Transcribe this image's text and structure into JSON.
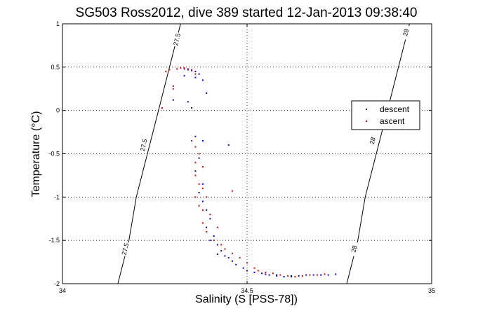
{
  "chart_data": {
    "type": "scatter",
    "title": "SG503 Ross2012, dive 389 started 12-Jan-2013 09:38:40",
    "xlabel": "Salinity (S [PSS-78])",
    "ylabel": "Temperature (°C)",
    "xlim": [
      34,
      35
    ],
    "ylim": [
      -2,
      1
    ],
    "grid": true,
    "legend_position": "right",
    "x_ticks": [
      "34",
      "34.5",
      "35"
    ],
    "y_ticks": [
      "-2",
      "-1.5",
      "-1",
      "-0.5",
      "0",
      "0.5",
      "1"
    ],
    "contours": [
      {
        "label": "27.5",
        "points": [
          [
            34.15,
            -2
          ],
          [
            34.18,
            -1.5
          ],
          [
            34.2,
            -1
          ],
          [
            34.23,
            -0.5
          ],
          [
            34.26,
            0
          ],
          [
            34.29,
            0.5
          ],
          [
            34.32,
            1
          ]
        ],
        "label_positions": [
          [
            34.17,
            -1.6
          ],
          [
            34.22,
            -0.4
          ],
          [
            34.31,
            0.82
          ]
        ]
      },
      {
        "label": "28",
        "points": [
          [
            34.77,
            -2
          ],
          [
            34.8,
            -1.5
          ],
          [
            34.82,
            -1
          ],
          [
            34.85,
            -0.5
          ],
          [
            34.88,
            0
          ],
          [
            34.91,
            0.5
          ],
          [
            34.94,
            1
          ]
        ],
        "label_positions": [
          [
            34.79,
            -1.6
          ],
          [
            34.84,
            -0.35
          ],
          [
            34.93,
            0.9
          ]
        ]
      }
    ],
    "series": [
      {
        "name": "descent",
        "color": "#0000ff",
        "x": [
          34.33,
          34.34,
          34.35,
          34.36,
          34.37,
          34.33,
          34.36,
          34.38,
          34.39,
          34.3,
          34.34,
          34.35,
          34.36,
          34.38,
          34.45,
          34.37,
          34.36,
          34.38,
          34.37,
          34.38,
          34.39,
          34.4,
          34.39,
          34.41,
          34.4,
          34.42,
          34.43,
          34.42,
          34.44,
          34.45,
          34.46,
          34.47,
          34.49,
          34.5,
          34.52,
          34.54,
          34.56,
          34.58,
          34.6,
          34.62,
          34.64,
          34.66,
          34.68,
          34.7,
          34.72,
          34.74,
          34.55,
          34.58,
          34.62
        ],
        "y": [
          0.48,
          0.47,
          0.46,
          0.45,
          0.42,
          0.4,
          0.38,
          0.35,
          0.2,
          0.12,
          0.1,
          0.03,
          -0.3,
          -0.35,
          -0.4,
          -0.55,
          -0.7,
          -0.85,
          -0.95,
          -1.05,
          -1.15,
          -1.25,
          -1.35,
          -1.45,
          -1.5,
          -1.55,
          -1.62,
          -1.66,
          -1.68,
          -1.7,
          -1.74,
          -1.78,
          -1.82,
          -1.85,
          -1.87,
          -1.88,
          -1.9,
          -1.91,
          -1.92,
          -1.92,
          -1.91,
          -1.9,
          -1.9,
          -1.9,
          -1.9,
          -1.89,
          -1.89,
          -1.9,
          -1.91
        ]
      },
      {
        "name": "ascent",
        "color": "#ff0000",
        "x": [
          34.28,
          34.29,
          34.31,
          34.32,
          34.33,
          34.34,
          34.35,
          34.3,
          34.36,
          34.27,
          34.35,
          34.36,
          34.37,
          34.36,
          34.38,
          34.36,
          34.37,
          34.38,
          34.36,
          34.39,
          34.37,
          34.38,
          34.4,
          34.38,
          34.42,
          34.39,
          34.41,
          34.43,
          34.44,
          34.46,
          34.48,
          34.5,
          34.52,
          34.53,
          34.55,
          34.57,
          34.59,
          34.61,
          34.63,
          34.65,
          34.67,
          34.69,
          34.71,
          34.46,
          34.3
        ],
        "y": [
          0.45,
          0.47,
          0.48,
          0.49,
          0.49,
          0.48,
          0.47,
          0.25,
          0.42,
          0.03,
          -0.35,
          -0.42,
          -0.5,
          -0.6,
          -0.65,
          -0.75,
          -0.85,
          -0.9,
          -1.0,
          -1.0,
          -1.1,
          -1.15,
          -1.2,
          -1.3,
          -1.35,
          -1.4,
          -1.5,
          -1.55,
          -1.6,
          -1.65,
          -1.7,
          -1.76,
          -1.82,
          -1.85,
          -1.87,
          -1.88,
          -1.9,
          -1.91,
          -1.92,
          -1.91,
          -1.9,
          -1.9,
          -1.89,
          -0.93,
          0.28
        ]
      }
    ]
  }
}
